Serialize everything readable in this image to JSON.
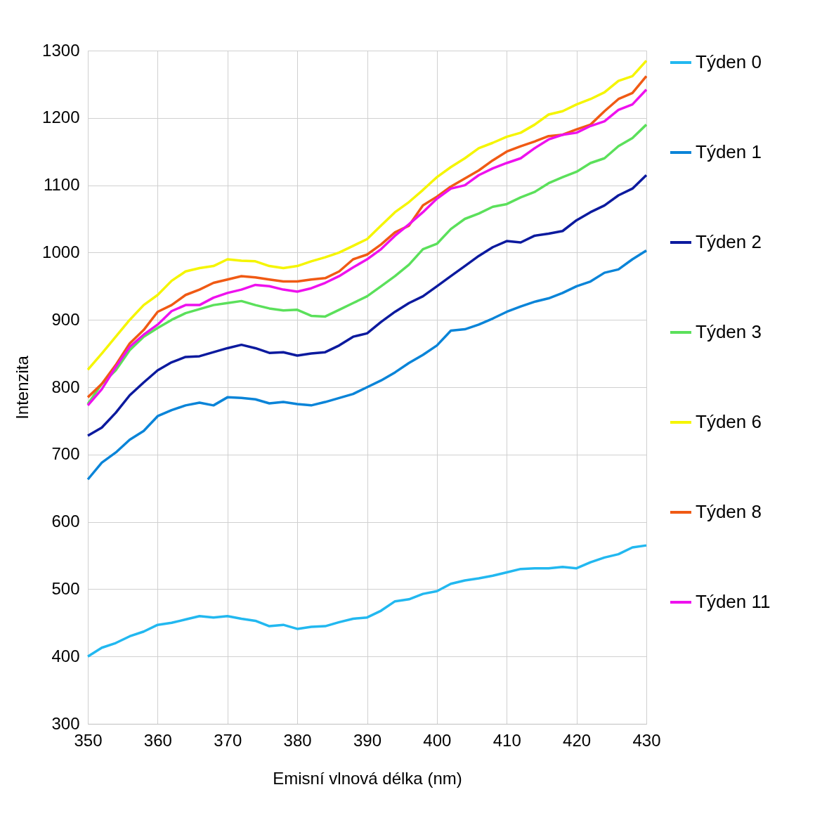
{
  "chart_data": {
    "type": "line",
    "xlabel": "Emisní vlnová délka (nm)",
    "ylabel": "Intenzita",
    "x": [
      350,
      352,
      354,
      356,
      358,
      360,
      362,
      364,
      366,
      368,
      370,
      372,
      374,
      376,
      378,
      380,
      382,
      384,
      386,
      388,
      390,
      392,
      394,
      396,
      398,
      400,
      402,
      404,
      406,
      408,
      410,
      412,
      414,
      416,
      418,
      420,
      422,
      424,
      426,
      428,
      430
    ],
    "xlim": [
      350,
      430
    ],
    "xticks": [
      350,
      360,
      370,
      380,
      390,
      400,
      410,
      420,
      430
    ],
    "ylim": [
      300,
      1300
    ],
    "yticks": [
      300,
      400,
      500,
      600,
      700,
      800,
      900,
      1000,
      1100,
      1200,
      1300
    ],
    "grid": true,
    "legend": "right",
    "marker": "none",
    "line_style": "solid",
    "series": [
      {
        "name": "Týden 0",
        "color": "#22b8f0",
        "values": [
          400,
          413,
          420,
          430,
          437,
          447,
          450,
          455,
          460,
          458,
          460,
          456,
          453,
          445,
          447,
          441,
          444,
          445,
          451,
          456,
          458,
          468,
          482,
          485,
          493,
          497,
          508,
          513,
          516,
          520,
          525,
          530,
          531,
          531,
          533,
          531,
          540,
          547,
          552,
          562,
          565
        ]
      },
      {
        "name": "Týden 1",
        "color": "#0a84d8",
        "values": [
          663,
          688,
          703,
          722,
          735,
          757,
          766,
          773,
          777,
          773,
          785,
          784,
          782,
          776,
          778,
          775,
          773,
          778,
          784,
          790,
          800,
          810,
          822,
          836,
          848,
          862,
          884,
          886,
          893,
          902,
          912,
          920,
          927,
          932,
          940,
          950,
          957,
          970,
          975,
          990,
          1003
        ]
      },
      {
        "name": "Týden 2",
        "color": "#0c1a9e",
        "values": [
          728,
          740,
          762,
          788,
          807,
          825,
          837,
          845,
          846,
          852,
          858,
          863,
          858,
          851,
          852,
          847,
          850,
          852,
          862,
          875,
          880,
          897,
          912,
          925,
          935,
          950,
          965,
          980,
          995,
          1008,
          1017,
          1015,
          1025,
          1028,
          1032,
          1048,
          1060,
          1070,
          1085,
          1095,
          1115
        ]
      },
      {
        "name": "Týden 3",
        "color": "#5be05b",
        "values": [
          775,
          805,
          825,
          855,
          875,
          888,
          900,
          910,
          916,
          922,
          925,
          928,
          922,
          917,
          914,
          915,
          906,
          905,
          915,
          925,
          935,
          950,
          965,
          982,
          1005,
          1013,
          1035,
          1050,
          1058,
          1068,
          1072,
          1082,
          1090,
          1103,
          1112,
          1120,
          1133,
          1140,
          1158,
          1170,
          1190
        ]
      },
      {
        "name": "Týden 6",
        "color": "#f5f500",
        "values": [
          826,
          850,
          875,
          900,
          922,
          937,
          958,
          972,
          977,
          980,
          990,
          988,
          987,
          980,
          977,
          980,
          987,
          993,
          1000,
          1010,
          1020,
          1040,
          1060,
          1075,
          1093,
          1112,
          1127,
          1140,
          1155,
          1163,
          1172,
          1178,
          1190,
          1205,
          1210,
          1220,
          1228,
          1238,
          1255,
          1262,
          1285
        ]
      },
      {
        "name": "Týden 8",
        "color": "#f05a14",
        "values": [
          785,
          805,
          833,
          865,
          885,
          912,
          922,
          937,
          945,
          955,
          960,
          965,
          963,
          960,
          957,
          957,
          960,
          962,
          972,
          990,
          997,
          1012,
          1030,
          1040,
          1070,
          1083,
          1098,
          1110,
          1122,
          1137,
          1150,
          1158,
          1165,
          1173,
          1175,
          1183,
          1190,
          1210,
          1228,
          1237,
          1262
        ]
      },
      {
        "name": "Týden 11",
        "color": "#ee11ee",
        "values": [
          773,
          797,
          830,
          860,
          878,
          893,
          913,
          922,
          922,
          933,
          940,
          945,
          952,
          950,
          945,
          942,
          947,
          955,
          965,
          978,
          990,
          1005,
          1025,
          1042,
          1060,
          1080,
          1095,
          1100,
          1115,
          1125,
          1133,
          1140,
          1155,
          1168,
          1175,
          1178,
          1188,
          1195,
          1212,
          1220,
          1242
        ]
      }
    ]
  }
}
